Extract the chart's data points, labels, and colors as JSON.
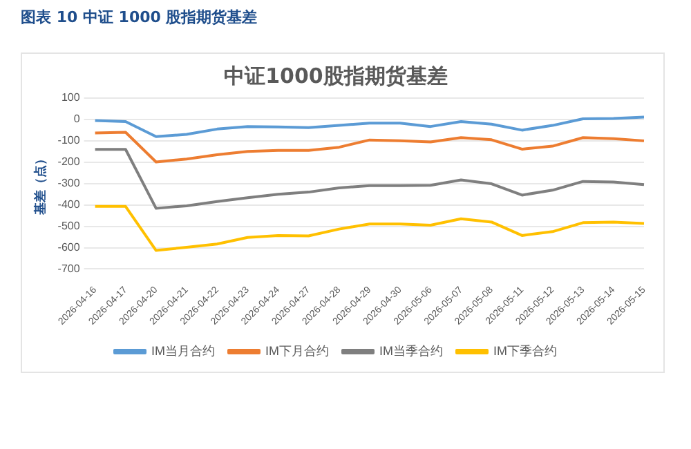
{
  "chart_data": {
    "type": "line",
    "title": "中证1000股指期货基差",
    "ylabel": "基差（点）",
    "annotations": [
      "图表 10  中证 1000 股指期货基差"
    ],
    "categories": [
      "2026-04-16",
      "2026-04-17",
      "2026-04-20",
      "2026-04-21",
      "2026-04-22",
      "2026-04-23",
      "2026-04-24",
      "2026-04-27",
      "2026-04-28",
      "2026-04-29",
      "2026-04-30",
      "2026-05-06",
      "2026-05-07",
      "2026-05-08",
      "2026-05-11",
      "2026-05-12",
      "2026-05-13",
      "2026-05-14",
      "2026-05-15"
    ],
    "series": [
      {
        "name": "IM当月合约",
        "color": "#5b9bd5",
        "values": [
          -5,
          -10,
          -80,
          -70,
          -45,
          -33,
          -35,
          -38,
          -28,
          -17,
          -17,
          -33,
          -10,
          -22,
          -50,
          -28,
          3,
          5,
          11
        ]
      },
      {
        "name": "IM下月合约",
        "color": "#ed7d31",
        "values": [
          -63,
          -60,
          -199,
          -185,
          -165,
          -150,
          -145,
          -145,
          -130,
          -96,
          -100,
          -105,
          -85,
          -95,
          -139,
          -125,
          -85,
          -90,
          -100
        ]
      },
      {
        "name": "IM当季合约",
        "color": "#7f7f7f",
        "values": [
          -140,
          -140,
          -416,
          -404,
          -384,
          -366,
          -350,
          -340,
          -320,
          -310,
          -310,
          -308,
          -283,
          -301,
          -354,
          -331,
          -290,
          -293,
          -305
        ]
      },
      {
        "name": "IM下季合约",
        "color": "#ffc000",
        "values": [
          -407,
          -407,
          -613,
          -598,
          -583,
          -552,
          -543,
          -545,
          -513,
          -489,
          -489,
          -495,
          -465,
          -480,
          -543,
          -525,
          -483,
          -480,
          -487
        ]
      }
    ],
    "ylim": [
      -700,
      100
    ],
    "yticks": [
      -700,
      -600,
      -500,
      -400,
      -300,
      -200,
      -100,
      0,
      100
    ],
    "grid": "y",
    "legend": "bottom",
    "marker": "none",
    "line_style": "solid"
  }
}
